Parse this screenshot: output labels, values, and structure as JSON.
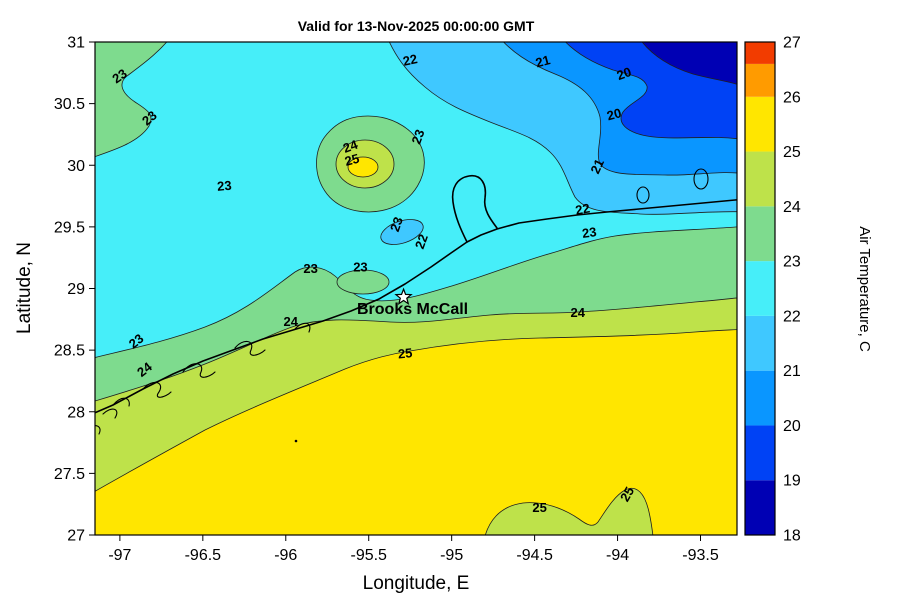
{
  "title": "Valid for 13-Nov-2025 00:00:00 GMT",
  "axes": {
    "x_label": "Longitude, E",
    "y_label": "Latitude, N",
    "lon_range": [
      -97.15,
      -93.28
    ],
    "lat_range": [
      27,
      31
    ],
    "x_ticks": [
      {
        "value": -97,
        "label": "-97"
      },
      {
        "value": -96.5,
        "label": "-96.5"
      },
      {
        "value": -96,
        "label": "-96"
      },
      {
        "value": -95.5,
        "label": "-95.5"
      },
      {
        "value": -95,
        "label": "-95"
      },
      {
        "value": -94.5,
        "label": "-94.5"
      },
      {
        "value": -94,
        "label": "-94"
      },
      {
        "value": -93.5,
        "label": "-93.5"
      }
    ],
    "y_ticks": [
      {
        "value": 27,
        "label": "27"
      },
      {
        "value": 27.5,
        "label": "27.5"
      },
      {
        "value": 28,
        "label": "28"
      },
      {
        "value": 28.5,
        "label": "28.5"
      },
      {
        "value": 29,
        "label": "29"
      },
      {
        "value": 29.5,
        "label": "29.5"
      },
      {
        "value": 30,
        "label": "30"
      },
      {
        "value": 30.5,
        "label": "30.5"
      },
      {
        "value": 31,
        "label": "31"
      }
    ]
  },
  "colors": {
    "band_18_19": "#0000B4",
    "band_19_20": "#0042F5",
    "band_20_21": "#0A96FF",
    "band_21_22": "#3FC8FF",
    "band_22_23": "#46EEF9",
    "band_23_24": "#7EDB8E",
    "band_24_25": "#BEE24A",
    "band_25_26": "#FFE600",
    "band_26_27": "#FF9B00",
    "band_cap": "#F23C00",
    "coastline": "#000000"
  },
  "colorbar": {
    "label": "Air Temperature, C",
    "range": [
      18,
      27
    ],
    "ticks": [
      18,
      19,
      20,
      21,
      22,
      23,
      24,
      25,
      26,
      27
    ],
    "cells": [
      {
        "from": 18,
        "to": 19,
        "color": "#0000B4"
      },
      {
        "from": 19,
        "to": 20,
        "color": "#0042F5"
      },
      {
        "from": 20,
        "to": 21,
        "color": "#0A96FF"
      },
      {
        "from": 21,
        "to": 22,
        "color": "#3FC8FF"
      },
      {
        "from": 22,
        "to": 23,
        "color": "#46EEF9"
      },
      {
        "from": 23,
        "to": 24,
        "color": "#7EDB8E"
      },
      {
        "from": 24,
        "to": 25,
        "color": "#BEE24A"
      },
      {
        "from": 25,
        "to": 26,
        "color": "#FFE600"
      },
      {
        "from": 26,
        "to": 26.6,
        "color": "#FF9B00"
      },
      {
        "from": 26.6,
        "to": 27,
        "color": "#F23C00"
      }
    ]
  },
  "map": {
    "station": {
      "name": "Brooks McCall",
      "lon": -95.29,
      "lat": 28.93
    },
    "contour_labels": [
      {
        "t": "23",
        "lon": -97.0,
        "lat": 30.72,
        "rot": -35
      },
      {
        "t": "23",
        "lon": -96.82,
        "lat": 30.38,
        "rot": -40
      },
      {
        "t": "22",
        "lon": -95.25,
        "lat": 30.85,
        "rot": -12
      },
      {
        "t": "21",
        "lon": -94.45,
        "lat": 30.84,
        "rot": -15
      },
      {
        "t": "20",
        "lon": -93.96,
        "lat": 30.74,
        "rot": -20
      },
      {
        "t": "20",
        "lon": -94.02,
        "lat": 30.41,
        "rot": -15
      },
      {
        "t": "21",
        "lon": -94.12,
        "lat": 29.99,
        "rot": -65
      },
      {
        "t": "22",
        "lon": -94.21,
        "lat": 29.64,
        "rot": -10
      },
      {
        "t": "23",
        "lon": -94.17,
        "lat": 29.45,
        "rot": -8
      },
      {
        "t": "23",
        "lon": -96.37,
        "lat": 29.83,
        "rot": -5
      },
      {
        "t": "24",
        "lon": -95.61,
        "lat": 30.15,
        "rot": -20
      },
      {
        "t": "25",
        "lon": -95.6,
        "lat": 30.04,
        "rot": -15
      },
      {
        "t": "23",
        "lon": -95.2,
        "lat": 30.23,
        "rot": -70
      },
      {
        "t": "23",
        "lon": -95.85,
        "lat": 29.16,
        "rot": 0
      },
      {
        "t": "23",
        "lon": -95.55,
        "lat": 29.17,
        "rot": 0
      },
      {
        "t": "23",
        "lon": -95.33,
        "lat": 29.52,
        "rot": -70
      },
      {
        "t": "22",
        "lon": -95.18,
        "lat": 29.38,
        "rot": -70
      },
      {
        "t": "23",
        "lon": -96.9,
        "lat": 28.57,
        "rot": -38
      },
      {
        "t": "24",
        "lon": -96.85,
        "lat": 28.34,
        "rot": -38
      },
      {
        "t": "24",
        "lon": -95.97,
        "lat": 28.73,
        "rot": 0
      },
      {
        "t": "25",
        "lon": -95.28,
        "lat": 28.47,
        "rot": -5
      },
      {
        "t": "24",
        "lon": -94.24,
        "lat": 28.8,
        "rot": 0
      },
      {
        "t": "25",
        "lon": -94.47,
        "lat": 27.22,
        "rot": 0
      },
      {
        "t": "25",
        "lon": -93.94,
        "lat": 27.33,
        "rot": -60
      }
    ]
  },
  "chart_data": {
    "type": "heatmap",
    "subtype": "filled-contour-map",
    "title": "Valid for 13-Nov-2025 00:00:00 GMT",
    "xlabel": "Longitude, E",
    "ylabel": "Latitude, N",
    "zlabel": "Air Temperature, C",
    "xlim": [
      -97.15,
      -93.28
    ],
    "ylim": [
      27,
      31
    ],
    "zlim": [
      18,
      27
    ],
    "contour_interval": 1,
    "labeled_levels": [
      20,
      21,
      22,
      23,
      24,
      25
    ],
    "legend_position": "right-colorbar",
    "features": [
      {
        "name": "warm-offshore-water",
        "approx_center": [
          -94.8,
          27.8
        ],
        "band": "25-26 C",
        "note": "large yellow region southeast of the 25C contour paralleling the Texas coast"
      },
      {
        "name": "coastal-band",
        "band": "24-25 C",
        "note": "yellow-green strip between the 24C and 25C contours along the coastline"
      },
      {
        "name": "inland-band",
        "band": "23-24 C",
        "note": "green band north of the coast; northern limit labeled 23"
      },
      {
        "name": "broad-cool-region",
        "band": "22-23 C",
        "note": "cyan region covering the northwest and center of the map"
      },
      {
        "name": "warm-spot",
        "approx_center": [
          -95.5,
          30.0
        ],
        "band": "25-26 C peak",
        "note": "closed 23/24/25 contours with small yellow core"
      },
      {
        "name": "cold-air-mass",
        "approx_center": [
          -93.6,
          30.9
        ],
        "band": "18-19 C minimum",
        "note": "nested 22/21/20 contours toward the northeast corner, darkest blue at corner"
      },
      {
        "name": "cool-pocket-south",
        "approx_center": [
          -94.4,
          27.05
        ],
        "band": "24-25 C",
        "note": "25C contour dips to the bottom edge near -94.5"
      }
    ],
    "station": {
      "name": "Brooks McCall",
      "lon": -95.29,
      "lat": 28.93,
      "marker": "white star"
    }
  }
}
